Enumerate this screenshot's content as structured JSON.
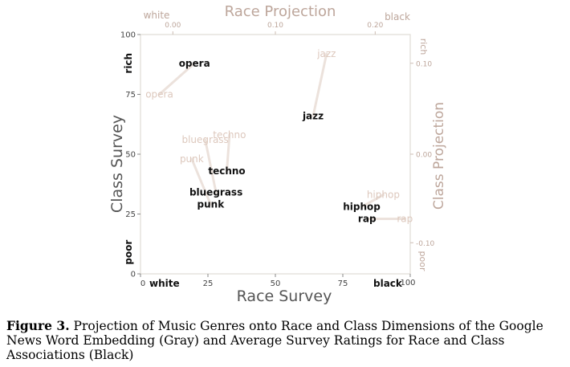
{
  "chart_data": {
    "type": "scatter",
    "xlabel": "Race Survey",
    "ylabel": "Class Survey",
    "top_axis_label": "Race Projection",
    "right_axis_label": "Class Projection",
    "xlim": [
      0,
      100
    ],
    "ylim": [
      0,
      100
    ],
    "x_ticks": [
      "0",
      "25",
      "50",
      "75",
      "100"
    ],
    "y_ticks": [
      "0",
      "25",
      "50",
      "75",
      "100"
    ],
    "top_ticks": [
      "0.00",
      "0.10",
      "0.20"
    ],
    "right_ticks": [
      "0.10",
      "0.00",
      "-0.10"
    ],
    "x_end_labels": {
      "low": "white",
      "high": "black"
    },
    "y_end_labels": {
      "low": "poor",
      "high": "rich"
    },
    "top_end_labels": {
      "low": "white",
      "high": "black"
    },
    "right_end_labels": {
      "low": "poor",
      "high": "rich"
    },
    "grid": false,
    "series": [
      {
        "color": "#ddc8bd",
        "points": [
          {
            "label": "jazz",
            "x": 69,
            "y": 92
          },
          {
            "label": "opera",
            "x": 7,
            "y": 75
          },
          {
            "label": "techno",
            "x": 33,
            "y": 58
          },
          {
            "label": "bluegrass",
            "x": 24,
            "y": 56
          },
          {
            "label": "punk",
            "x": 19,
            "y": 48
          },
          {
            "label": "hiphop",
            "x": 90,
            "y": 33
          },
          {
            "label": "rap",
            "x": 98,
            "y": 23
          }
        ]
      },
      {
        "color": "#111111",
        "points": [
          {
            "label": "opera",
            "x": 20,
            "y": 88
          },
          {
            "label": "jazz",
            "x": 64,
            "y": 66
          },
          {
            "label": "techno",
            "x": 32,
            "y": 43
          },
          {
            "label": "bluegrass",
            "x": 28,
            "y": 34
          },
          {
            "label": "punk",
            "x": 26,
            "y": 29
          },
          {
            "label": "hiphop",
            "x": 82,
            "y": 28
          },
          {
            "label": "rap",
            "x": 84,
            "y": 23
          }
        ]
      }
    ]
  },
  "caption": {
    "label": "Figure 3.",
    "text": "Projection of Music Genres onto Race and Class Dimensions of the Google News Word Embedding (Gray) and Average Survey Ratings for Race and Class Associations (Black)"
  }
}
